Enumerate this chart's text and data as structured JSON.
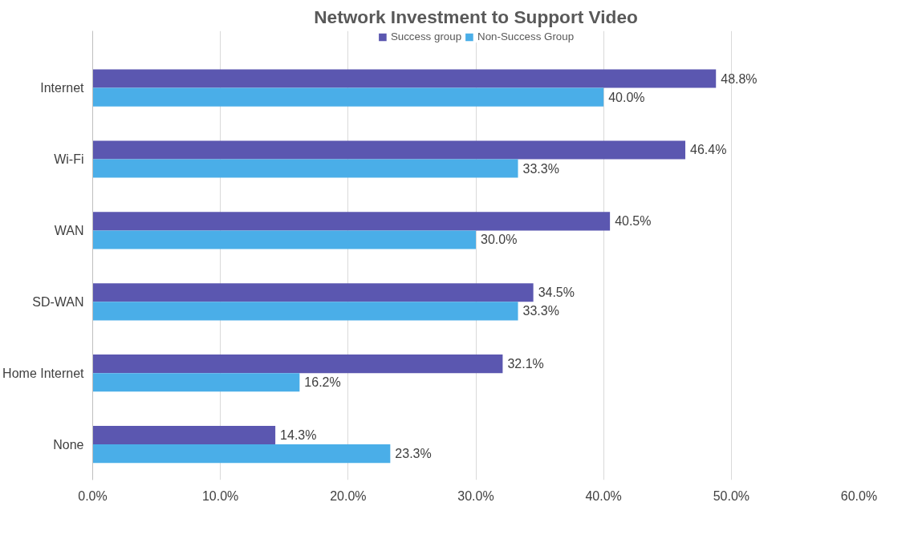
{
  "chart_data": {
    "type": "bar",
    "orientation": "horizontal",
    "title": "Network Investment to Support Video",
    "categories": [
      "Internet",
      "Wi-Fi",
      "WAN",
      "SD-WAN",
      "Home Internet",
      "None"
    ],
    "series": [
      {
        "name": "Success group",
        "color": "#5b57b0",
        "values": [
          48.8,
          46.4,
          40.5,
          34.5,
          32.1,
          14.3
        ],
        "value_labels": [
          "48.8%",
          "46.4%",
          "40.5%",
          "34.5%",
          "32.1%",
          "14.3%"
        ]
      },
      {
        "name": "Non-Success Group",
        "color": "#4aaee8",
        "values": [
          40.0,
          33.3,
          30.0,
          33.3,
          16.2,
          23.3
        ],
        "value_labels": [
          "40.0%",
          "33.3%",
          "30.0%",
          "33.3%",
          "16.2%",
          "23.3%"
        ]
      }
    ],
    "xlim": [
      0,
      60
    ],
    "xticks": [
      {
        "value": 0,
        "label": "0.0%"
      },
      {
        "value": 10,
        "label": "10.0%"
      },
      {
        "value": 20,
        "label": "20.0%"
      },
      {
        "value": 30,
        "label": "30.0%"
      },
      {
        "value": 40,
        "label": "40.0%"
      },
      {
        "value": 50,
        "label": "50.0%"
      },
      {
        "value": 60,
        "label": "60.0%"
      }
    ],
    "grid": "x",
    "legend": "top"
  }
}
